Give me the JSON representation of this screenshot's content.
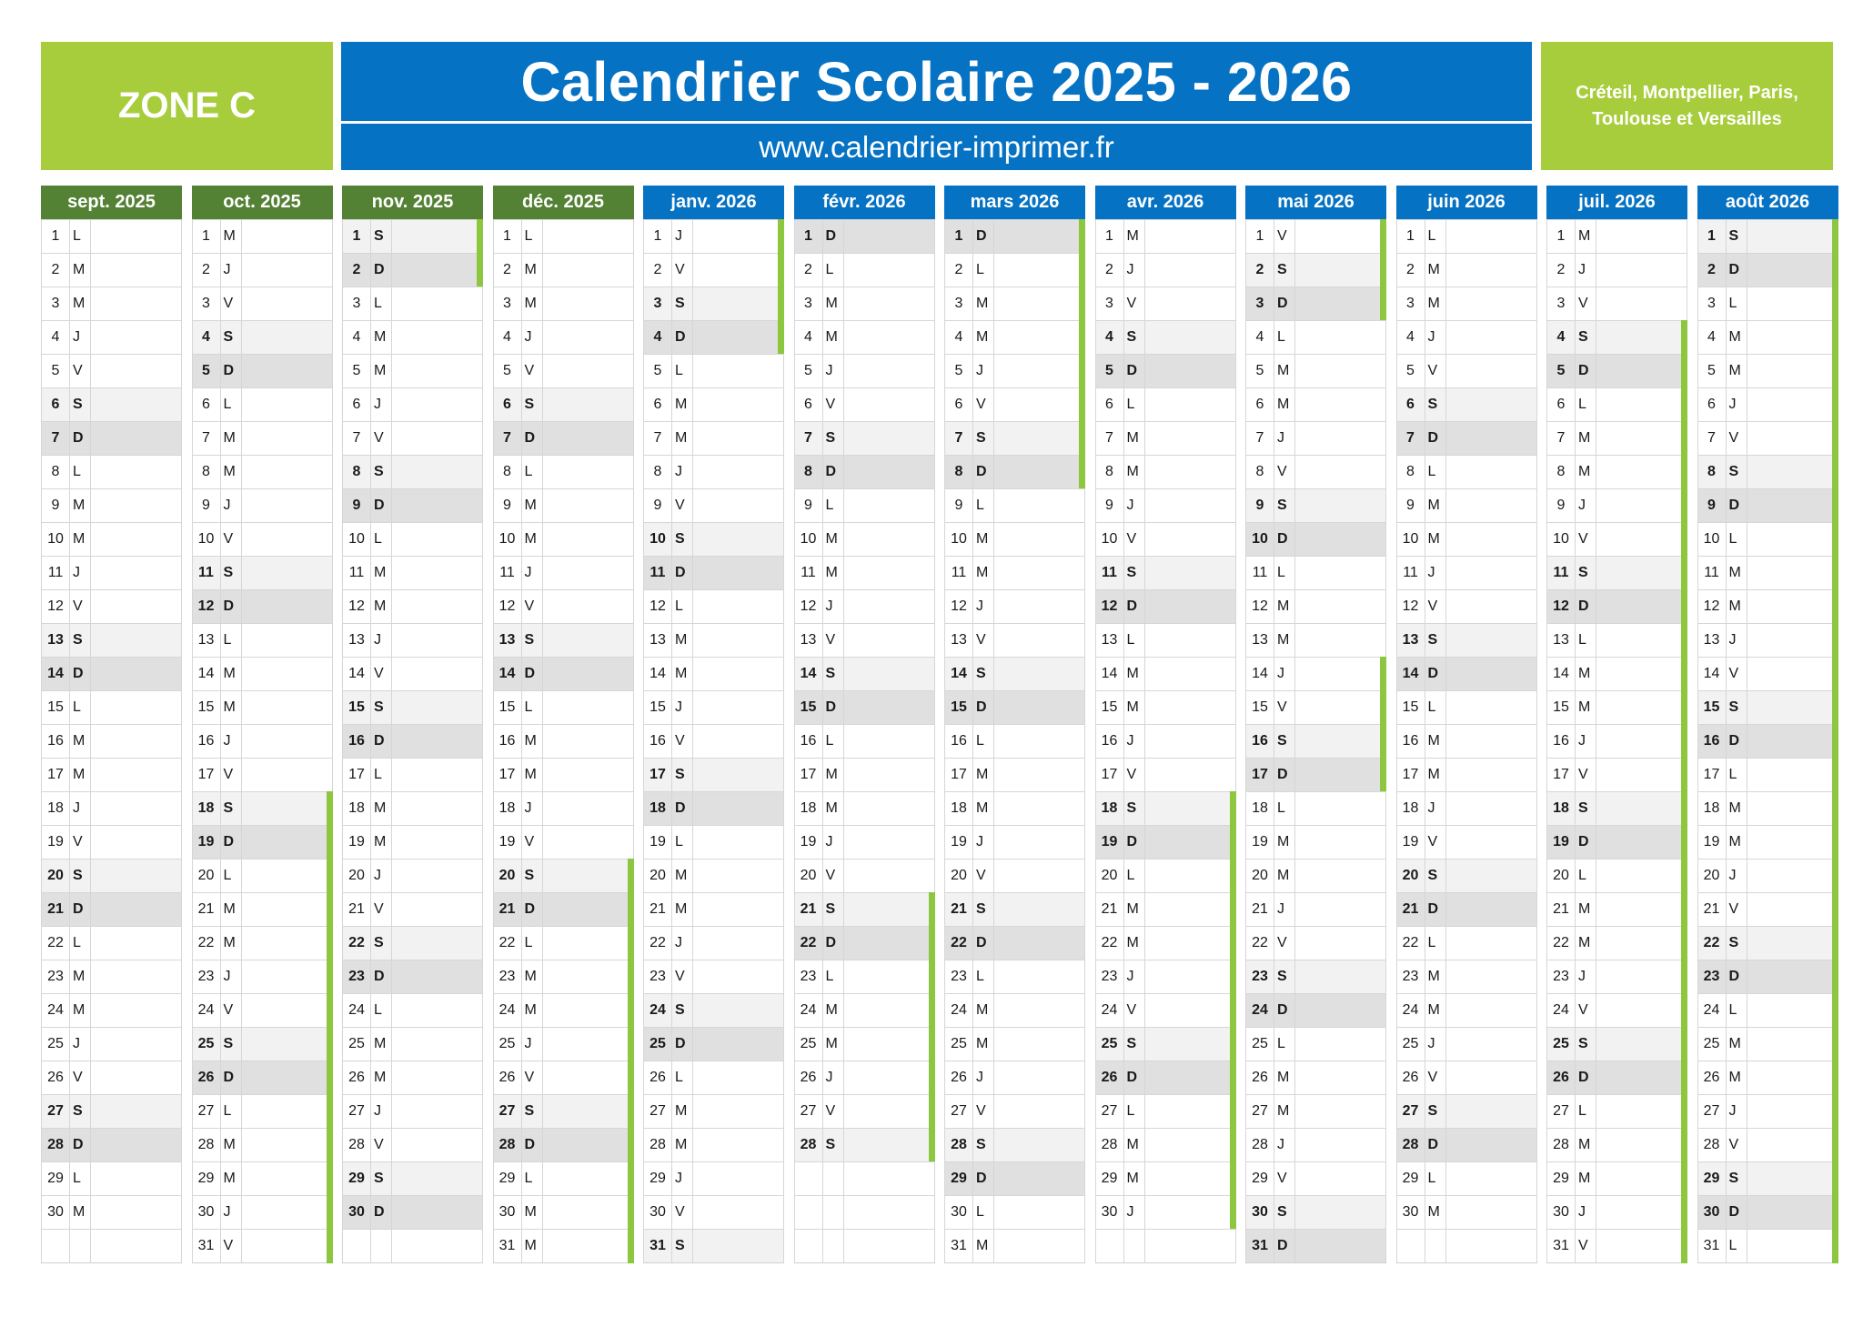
{
  "header": {
    "zone": "ZONE C",
    "title": "Calendrier Scolaire 2025 - 2026",
    "url": "www.calendrier-imprimer.fr",
    "cities": "Créteil, Montpellier, Paris, Toulouse et Versailles"
  },
  "colors": {
    "green_box": "#a8cd3c",
    "blue": "#0572c3",
    "dark_green_header": "#548235",
    "holiday_bar": "#8dc63f",
    "saturday": "#f2f2f2",
    "sunday": "#e0e0e0"
  },
  "months": [
    {
      "label": "sept. 2025",
      "color": "green",
      "days": 30,
      "first_weekday": 0,
      "holidays": []
    },
    {
      "label": "oct. 2025",
      "color": "green",
      "days": 31,
      "first_weekday": 2,
      "holidays": [
        [
          18,
          31
        ]
      ]
    },
    {
      "label": "nov. 2025",
      "color": "green",
      "days": 30,
      "first_weekday": 5,
      "holidays": [
        [
          1,
          2
        ]
      ]
    },
    {
      "label": "déc. 2025",
      "color": "green",
      "days": 31,
      "first_weekday": 0,
      "holidays": [
        [
          20,
          31
        ]
      ]
    },
    {
      "label": "janv. 2026",
      "color": "blue",
      "days": 31,
      "first_weekday": 3,
      "holidays": [
        [
          1,
          4
        ]
      ]
    },
    {
      "label": "févr. 2026",
      "color": "blue",
      "days": 28,
      "first_weekday": 6,
      "holidays": [
        [
          21,
          28
        ]
      ]
    },
    {
      "label": "mars 2026",
      "color": "blue",
      "days": 31,
      "first_weekday": 6,
      "holidays": [
        [
          1,
          8
        ]
      ]
    },
    {
      "label": "avr. 2026",
      "color": "blue",
      "days": 30,
      "first_weekday": 2,
      "holidays": [
        [
          18,
          30
        ]
      ]
    },
    {
      "label": "mai 2026",
      "color": "blue",
      "days": 31,
      "first_weekday": 4,
      "holidays": [
        [
          1,
          3
        ],
        [
          14,
          17
        ]
      ]
    },
    {
      "label": "juin 2026",
      "color": "blue",
      "days": 30,
      "first_weekday": 0,
      "holidays": []
    },
    {
      "label": "juil. 2026",
      "color": "blue",
      "days": 31,
      "first_weekday": 2,
      "holidays": [
        [
          4,
          31
        ]
      ]
    },
    {
      "label": "août 2026",
      "color": "blue",
      "days": 31,
      "first_weekday": 5,
      "holidays": [
        [
          1,
          31
        ]
      ]
    }
  ],
  "weekday_letters": [
    "L",
    "M",
    "M",
    "J",
    "V",
    "S",
    "D"
  ]
}
